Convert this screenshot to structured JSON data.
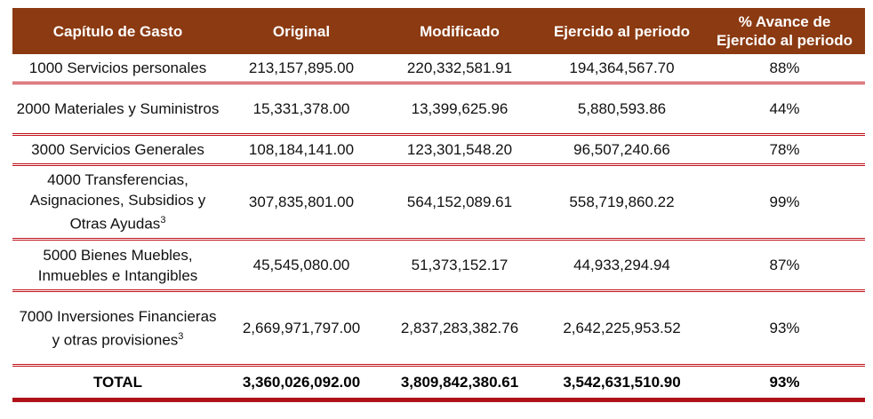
{
  "table": {
    "headers": [
      "Capítulo de Gasto",
      "Original",
      "Modificado",
      "Ejercido al periodo",
      "% Avance de Ejercido al periodo"
    ],
    "rows": [
      {
        "capitulo": "1000 Servicios personales",
        "original": "213,157,895.00",
        "modificado": "220,332,581.91",
        "ejercido": "194,364,567.70",
        "avance": "88%"
      },
      {
        "capitulo": "2000 Materiales y Suministros",
        "original": "15,331,378.00",
        "modificado": "13,399,625.96",
        "ejercido": "5,880,593.86",
        "avance": "44%"
      },
      {
        "capitulo": "3000 Servicios Generales",
        "original": "108,184,141.00",
        "modificado": "123,301,548.20",
        "ejercido": "96,507,240.66",
        "avance": "78%"
      },
      {
        "capitulo": "4000 Transferencias, Asignaciones, Subsidios y Otras Ayudas",
        "sup": "3",
        "original": "307,835,801.00",
        "modificado": "564,152,089.61",
        "ejercido": "558,719,860.22",
        "avance": "99%"
      },
      {
        "capitulo": "5000 Bienes Muebles, Inmuebles e Intangibles",
        "original": "45,545,080.00",
        "modificado": "51,373,152.17",
        "ejercido": "44,933,294.94",
        "avance": "87%"
      },
      {
        "capitulo": "7000 Inversiones Financieras y otras provisiones",
        "sup": "3",
        "original": "2,669,971,797.00",
        "modificado": "2,837,283,382.76",
        "ejercido": "2,642,225,953.52",
        "avance": "93%"
      }
    ],
    "total": {
      "label": "TOTAL",
      "original": "3,360,026,092.00",
      "modificado": "3,809,842,380.61",
      "ejercido": "3,542,631,510.90",
      "avance": "93%"
    }
  },
  "colors": {
    "header_bg": "#8b3a12",
    "rule": "#c0121a"
  }
}
